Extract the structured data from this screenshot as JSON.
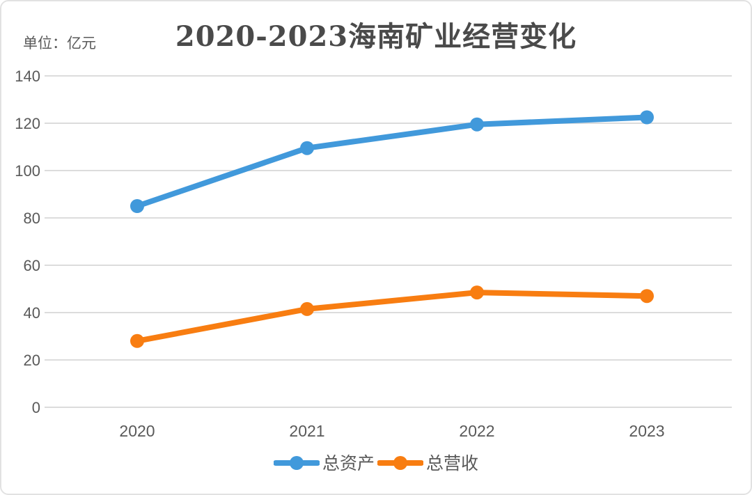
{
  "title": "2020-2023海南矿业经营变化",
  "unit_label": "单位：亿元",
  "colors": {
    "assets_line": "#4199db",
    "revenue_line": "#f87d11",
    "gridline": "#dcdcdc",
    "axis_text": "#595959",
    "title_text": "#4a4a4a",
    "frame_border": "#e2e2e2",
    "background": "#ffffff"
  },
  "chart_data": {
    "type": "line",
    "categories": [
      "2020",
      "2021",
      "2022",
      "2023"
    ],
    "series": [
      {
        "name": "总资产",
        "color": "#4199db",
        "values": [
          85,
          109.5,
          119.5,
          122.5
        ]
      },
      {
        "name": "总营收",
        "color": "#f87d11",
        "values": [
          28,
          41.5,
          48.5,
          47
        ]
      }
    ],
    "title": "2020-2023海南矿业经营变化",
    "unit": "亿元",
    "xlabel": "",
    "ylabel": "",
    "yticks": [
      0,
      20,
      40,
      60,
      80,
      100,
      120,
      140
    ],
    "ylim": [
      0,
      140
    ],
    "grid": "horizontal-only",
    "legend_position": "bottom",
    "marker": "circle",
    "line_width": 8
  }
}
